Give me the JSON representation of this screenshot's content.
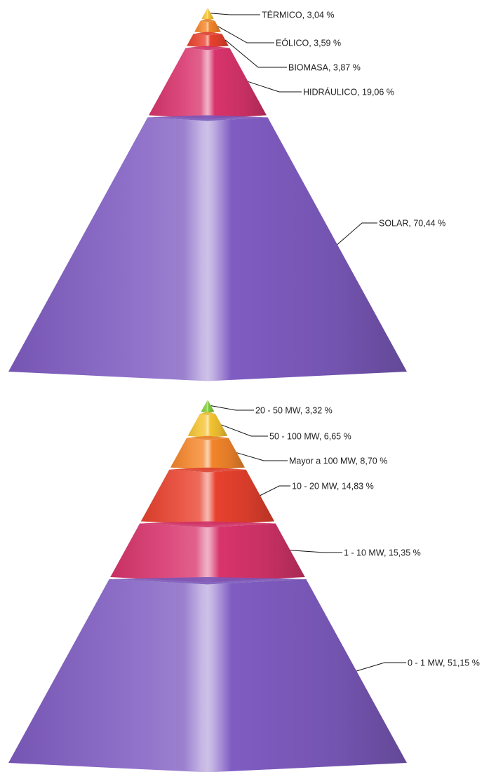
{
  "chart_data": [
    {
      "type": "pyramid",
      "segments_top_to_bottom": [
        {
          "label": "TÉRMICO",
          "value": 3.04,
          "display": "TÉRMICO, 3,04 %",
          "color": "#f3c332"
        },
        {
          "label": "EÓLICO",
          "value": 3.59,
          "display": "EÓLICO, 3,59 %",
          "color": "#f2852a"
        },
        {
          "label": "BIOMASA",
          "value": 3.87,
          "display": "BIOMASA, 3,87 %",
          "color": "#e8412e"
        },
        {
          "label": "HIDRÁULICO",
          "value": 19.06,
          "display": "HIDRÁULICO, 19,06 %",
          "color": "#d8346c"
        },
        {
          "label": "SOLAR",
          "value": 70.44,
          "display": "SOLAR, 70,44 %",
          "color": "#7f5cc2"
        }
      ]
    },
    {
      "type": "pyramid",
      "segments_top_to_bottom": [
        {
          "label": "20 - 50 MW",
          "value": 3.32,
          "display": "20 - 50 MW, 3,32 %",
          "color": "#7ec93a"
        },
        {
          "label": "50 - 100 MW",
          "value": 6.65,
          "display": "50 - 100 MW, 6,65 %",
          "color": "#f3c332"
        },
        {
          "label": "Mayor a 100 MW",
          "value": 8.7,
          "display": "Mayor a 100 MW, 8,70 %",
          "color": "#f2852a"
        },
        {
          "label": "10 - 20 MW",
          "value": 14.83,
          "display": "10 - 20 MW, 14,83 %",
          "color": "#e8412e"
        },
        {
          "label": "1 - 10 MW",
          "value": 15.35,
          "display": "1 - 10 MW, 15,35 %",
          "color": "#d8346c"
        },
        {
          "label": "0 - 1 MW",
          "value": 51.15,
          "display": "0 - 1 MW, 51,15 %",
          "color": "#7f5cc2"
        }
      ]
    }
  ]
}
